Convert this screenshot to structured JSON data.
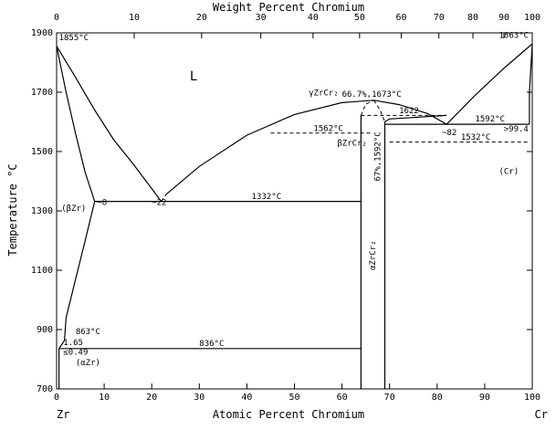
{
  "chart_data": {
    "type": "phase-diagram",
    "top_axis": {
      "title": "Weight Percent Chromium",
      "ticks": [
        0,
        10,
        20,
        30,
        40,
        50,
        60,
        70,
        80,
        90,
        100
      ]
    },
    "bottom_axis": {
      "title": "Atomic Percent Chromium",
      "ticks": [
        0,
        10,
        20,
        30,
        40,
        50,
        60,
        70,
        80,
        90,
        100
      ],
      "end_labels": {
        "left": "Zr",
        "right": "Cr"
      }
    },
    "y_axis": {
      "title": "Temperature °C",
      "ticks": [
        700,
        900,
        1100,
        1300,
        1500,
        1700,
        1900
      ],
      "ylim": [
        700,
        1900
      ]
    },
    "xlim": [
      0,
      100
    ],
    "solid_lines": [
      {
        "name": "liquidus-zr-side",
        "points": [
          [
            0,
            1855
          ],
          [
            4,
            1750
          ],
          [
            8,
            1640
          ],
          [
            12,
            1540
          ],
          [
            16,
            1460
          ],
          [
            20,
            1375
          ],
          [
            22,
            1332
          ]
        ]
      },
      {
        "name": "solidus-betazr",
        "points": [
          [
            0,
            1855
          ],
          [
            2,
            1700
          ],
          [
            4,
            1560
          ],
          [
            6,
            1430
          ],
          [
            8,
            1332
          ]
        ]
      },
      {
        "name": "solvus-betazr",
        "points": [
          [
            8,
            1332
          ],
          [
            6,
            1200
          ],
          [
            4,
            1070
          ],
          [
            2,
            940
          ],
          [
            1.65,
            863
          ]
        ]
      },
      {
        "name": "liquidus-laves",
        "points": [
          [
            23,
            1355
          ],
          [
            30,
            1450
          ],
          [
            40,
            1555
          ],
          [
            50,
            1625
          ],
          [
            60,
            1665
          ],
          [
            66.7,
            1673
          ],
          [
            72,
            1658
          ],
          [
            78,
            1628
          ],
          [
            82,
            1592
          ]
        ]
      },
      {
        "name": "liquidus-cr-side",
        "points": [
          [
            82,
            1592
          ],
          [
            88,
            1690
          ],
          [
            94,
            1780
          ],
          [
            100,
            1863
          ]
        ]
      },
      {
        "name": "solidus-cr",
        "points": [
          [
            100,
            1863
          ],
          [
            99.4,
            1700
          ],
          [
            99.4,
            1592
          ]
        ]
      },
      {
        "name": "eutectic-1332",
        "points": [
          [
            8,
            1332
          ],
          [
            64,
            1332
          ]
        ]
      },
      {
        "name": "eutectoid-836",
        "points": [
          [
            0.49,
            836
          ],
          [
            64,
            836
          ]
        ]
      },
      {
        "name": "eutectic-1592",
        "points": [
          [
            69,
            1592
          ],
          [
            99.4,
            1592
          ]
        ]
      },
      {
        "name": "alpha-laves-left",
        "points": [
          [
            64,
            700
          ],
          [
            64,
            1622
          ]
        ]
      },
      {
        "name": "alpha-laves-right",
        "points": [
          [
            69,
            700
          ],
          [
            69,
            1600
          ],
          [
            70,
            1610
          ],
          [
            82,
            1622
          ]
        ]
      },
      {
        "name": "alphazr-solvus",
        "points": [
          [
            0.49,
            700
          ],
          [
            0.49,
            836
          ],
          [
            1.65,
            863
          ]
        ]
      }
    ],
    "dashed_lines": [
      {
        "name": "liquidus-gap",
        "points": [
          [
            22,
            1332
          ],
          [
            23,
            1355
          ]
        ]
      },
      {
        "name": "bzr-laves-1562",
        "points": [
          [
            45,
            1562
          ],
          [
            66,
            1562
          ]
        ]
      },
      {
        "name": "laves-1622",
        "points": [
          [
            64,
            1622
          ],
          [
            82,
            1622
          ]
        ]
      },
      {
        "name": "laves-1532",
        "points": [
          [
            70,
            1532
          ],
          [
            99.4,
            1532
          ]
        ]
      },
      {
        "name": "laves-field-left",
        "points": [
          [
            64,
            1622
          ],
          [
            65,
            1660
          ],
          [
            66.7,
            1673
          ]
        ]
      },
      {
        "name": "laves-field-right",
        "points": [
          [
            66.7,
            1673
          ],
          [
            68,
            1640
          ],
          [
            69,
            1600
          ]
        ]
      }
    ],
    "annotations": [
      {
        "text": "1855°C",
        "x": 0.5,
        "y": 1875
      },
      {
        "text": "1863°C",
        "x": 93,
        "y": 1883
      },
      {
        "text": "L",
        "x": 28,
        "y": 1740,
        "large": true
      },
      {
        "text": "γZrCr₂",
        "x": 53,
        "y": 1690
      },
      {
        "text": "66.7%,1673°C",
        "x": 60,
        "y": 1685
      },
      {
        "text": "1622",
        "x": 72,
        "y": 1630
      },
      {
        "text": "1592°C",
        "x": 88,
        "y": 1602
      },
      {
        "text": "1562°C",
        "x": 54,
        "y": 1570
      },
      {
        "text": "~82",
        "x": 81,
        "y": 1555
      },
      {
        "text": ">99.4",
        "x": 94,
        "y": 1568
      },
      {
        "text": "1532°C",
        "x": 85,
        "y": 1540
      },
      {
        "text": "βZrCr₂",
        "x": 59,
        "y": 1520
      },
      {
        "text": "67%,1592°C",
        "x": 68,
        "y": 1400,
        "vertical": true
      },
      {
        "text": "(Cr)",
        "x": 93,
        "y": 1425
      },
      {
        "text": "~8",
        "x": 8.5,
        "y": 1320
      },
      {
        "text": "~22",
        "x": 20,
        "y": 1320
      },
      {
        "text": "1332°C",
        "x": 41,
        "y": 1340
      },
      {
        "text": "(βZr)",
        "x": 1,
        "y": 1300
      },
      {
        "text": "αZrCr₂",
        "x": 67,
        "y": 1100,
        "vertical": true
      },
      {
        "text": "863°C",
        "x": 4,
        "y": 885
      },
      {
        "text": "1.65",
        "x": 1.4,
        "y": 848
      },
      {
        "text": "836°C",
        "x": 30,
        "y": 845
      },
      {
        "text": "≤0.49",
        "x": 1.4,
        "y": 815
      },
      {
        "text": "(αZr)",
        "x": 4,
        "y": 780
      }
    ]
  }
}
